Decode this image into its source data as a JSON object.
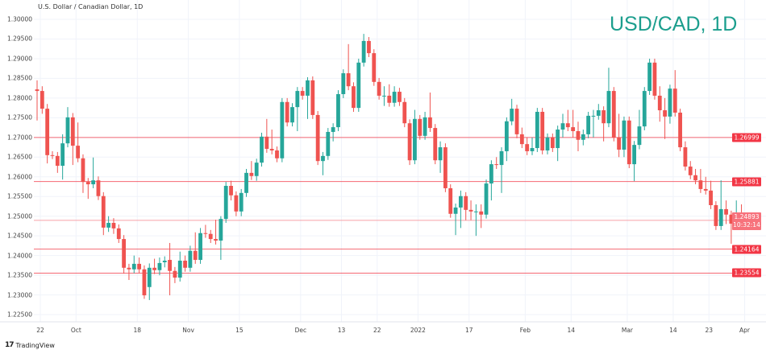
{
  "header": {
    "symbol_description": "U.S. Dollar / Canadian Dollar, 1D",
    "watermark_title": "USD/CAD, 1D"
  },
  "branding": {
    "logo_text": "TradingView"
  },
  "colors": {
    "up": "#26a69a",
    "down": "#ef5350",
    "level_line": "#f23645",
    "title": "#1b9e8d"
  },
  "chart_data": {
    "type": "candlestick",
    "title": "U.S. Dollar / Canadian Dollar, 1D",
    "ylim": [
      1.221,
      1.3015
    ],
    "grid": true,
    "y_axis_position": "left",
    "y_ticks": [
      "1.30000",
      "1.29500",
      "1.29000",
      "1.28500",
      "1.28000",
      "1.27500",
      "1.27000",
      "1.26500",
      "1.26000",
      "1.25500",
      "1.25000",
      "1.24500",
      "1.24000",
      "1.23500",
      "1.23000",
      "1.22500"
    ],
    "x_ticks": [
      {
        "label": "22",
        "index": 0
      },
      {
        "label": "Oct",
        "index": 7
      },
      {
        "label": "18",
        "index": 19
      },
      {
        "label": "Nov",
        "index": 29
      },
      {
        "label": "15",
        "index": 39
      },
      {
        "label": "Dec",
        "index": 51
      },
      {
        "label": "13",
        "index": 59
      },
      {
        "label": "22",
        "index": 66
      },
      {
        "label": "2022",
        "index": 74
      },
      {
        "label": "17",
        "index": 84
      },
      {
        "label": "Feb",
        "index": 95
      },
      {
        "label": "14",
        "index": 104
      },
      {
        "label": "Mar",
        "index": 115
      },
      {
        "label": "14",
        "index": 124
      },
      {
        "label": "23",
        "index": 131
      },
      {
        "label": "Apr",
        "index": 138
      }
    ],
    "horizontal_levels": [
      "1.26999",
      "1.25881",
      "1.24164",
      "1.23554"
    ],
    "current_price": {
      "value": "1.24893",
      "countdown": "10:32:14"
    },
    "ohlc_fields": [
      "open",
      "high",
      "low",
      "close"
    ],
    "candles": [
      [
        1.2822,
        1.2845,
        1.2743,
        1.2818
      ],
      [
        1.2818,
        1.283,
        1.276,
        1.2773
      ],
      [
        1.2773,
        1.2785,
        1.2634,
        1.2655
      ],
      [
        1.2655,
        1.2665,
        1.2645,
        1.2653
      ],
      [
        1.2653,
        1.2663,
        1.261,
        1.2628
      ],
      [
        1.2628,
        1.2708,
        1.2593,
        1.2685
      ],
      [
        1.2685,
        1.2777,
        1.2675,
        1.2751
      ],
      [
        1.2751,
        1.2762,
        1.263,
        1.2679
      ],
      [
        1.2679,
        1.2738,
        1.2637,
        1.2647
      ],
      [
        1.2647,
        1.2657,
        1.2559,
        1.2587
      ],
      [
        1.2587,
        1.2597,
        1.2544,
        1.2581
      ],
      [
        1.2581,
        1.2649,
        1.2571,
        1.2591
      ],
      [
        1.2591,
        1.2601,
        1.2541,
        1.2551
      ],
      [
        1.2551,
        1.2561,
        1.2452,
        1.2471
      ],
      [
        1.2471,
        1.25,
        1.246,
        1.2483
      ],
      [
        1.2483,
        1.2495,
        1.2455,
        1.2469
      ],
      [
        1.2469,
        1.2479,
        1.2432,
        1.2442
      ],
      [
        1.2442,
        1.2452,
        1.2354,
        1.2369
      ],
      [
        1.2369,
        1.2379,
        1.2338,
        1.2365
      ],
      [
        1.2365,
        1.24,
        1.2355,
        1.2379
      ],
      [
        1.2379,
        1.2395,
        1.2355,
        1.2365
      ],
      [
        1.2365,
        1.2375,
        1.229,
        1.2299
      ],
      [
        1.232,
        1.238,
        1.2287,
        1.2369
      ],
      [
        1.2369,
        1.2392,
        1.2353,
        1.2363
      ],
      [
        1.2363,
        1.2395,
        1.235,
        1.2381
      ],
      [
        1.2383,
        1.2398,
        1.237,
        1.2387
      ],
      [
        1.2389,
        1.2432,
        1.2299,
        1.2361
      ],
      [
        1.2361,
        1.2371,
        1.233,
        1.2344
      ],
      [
        1.2344,
        1.241,
        1.2334,
        1.2387
      ],
      [
        1.2387,
        1.24,
        1.2359,
        1.2369
      ],
      [
        1.2369,
        1.2425,
        1.2359,
        1.2412
      ],
      [
        1.2412,
        1.2459,
        1.2379,
        1.2389
      ],
      [
        1.2389,
        1.247,
        1.2379,
        1.2457
      ],
      [
        1.2457,
        1.2478,
        1.2445,
        1.2455
      ],
      [
        1.2455,
        1.2465,
        1.2432,
        1.2442
      ],
      [
        1.2442,
        1.2491,
        1.2428,
        1.2438
      ],
      [
        1.2438,
        1.25,
        1.2389,
        1.2493
      ],
      [
        1.2493,
        1.2587,
        1.2483,
        1.2577
      ],
      [
        1.2577,
        1.259,
        1.254,
        1.2553
      ],
      [
        1.2553,
        1.2563,
        1.25,
        1.2512
      ],
      [
        1.2512,
        1.2569,
        1.25,
        1.2559
      ],
      [
        1.2559,
        1.262,
        1.2549,
        1.261
      ],
      [
        1.261,
        1.264,
        1.2592,
        1.2602
      ],
      [
        1.2602,
        1.2646,
        1.259,
        1.2636
      ],
      [
        1.2636,
        1.2712,
        1.2626,
        1.2702
      ],
      [
        1.2702,
        1.2747,
        1.2661,
        1.2671
      ],
      [
        1.2671,
        1.272,
        1.2657,
        1.2667
      ],
      [
        1.2667,
        1.2677,
        1.2637,
        1.2647
      ],
      [
        1.2647,
        1.28,
        1.2637,
        1.279
      ],
      [
        1.279,
        1.28,
        1.2728,
        1.2738
      ],
      [
        1.2738,
        1.2787,
        1.2728,
        1.2777
      ],
      [
        1.2777,
        1.2828,
        1.2716,
        1.2818
      ],
      [
        1.2818,
        1.2828,
        1.2796,
        1.2806
      ],
      [
        1.2806,
        1.2853,
        1.2747,
        1.2845
      ],
      [
        1.2845,
        1.2855,
        1.2747,
        1.2757
      ],
      [
        1.2757,
        1.2767,
        1.263,
        1.264
      ],
      [
        1.264,
        1.2663,
        1.2604,
        1.2653
      ],
      [
        1.2653,
        1.2724,
        1.2643,
        1.2714
      ],
      [
        1.2714,
        1.2736,
        1.269,
        1.2726
      ],
      [
        1.2726,
        1.282,
        1.2716,
        1.281
      ],
      [
        1.281,
        1.2873,
        1.28,
        1.2863
      ],
      [
        1.2863,
        1.2937,
        1.282,
        1.283
      ],
      [
        1.283,
        1.284,
        1.2765,
        1.2775
      ],
      [
        1.2775,
        1.29,
        1.2765,
        1.289
      ],
      [
        1.289,
        1.2963,
        1.288,
        1.2945
      ],
      [
        1.2945,
        1.2955,
        1.2904,
        1.2914
      ],
      [
        1.2914,
        1.2924,
        1.2831,
        1.2841
      ],
      [
        1.2841,
        1.2851,
        1.2796,
        1.2806
      ],
      [
        1.2806,
        1.283,
        1.278,
        1.2806
      ],
      [
        1.2806,
        1.2835,
        1.2778,
        1.2788
      ],
      [
        1.2788,
        1.283,
        1.2778,
        1.2816
      ],
      [
        1.2816,
        1.2826,
        1.278,
        1.279
      ],
      [
        1.279,
        1.28,
        1.2726,
        1.2736
      ],
      [
        1.2736,
        1.2746,
        1.263,
        1.2642
      ],
      [
        1.2642,
        1.277,
        1.2632,
        1.2747
      ],
      [
        1.2747,
        1.2757,
        1.2694,
        1.2704
      ],
      [
        1.2704,
        1.2765,
        1.2694,
        1.2751
      ],
      [
        1.2751,
        1.2814,
        1.2714,
        1.2724
      ],
      [
        1.2724,
        1.2734,
        1.2632,
        1.2642
      ],
      [
        1.2642,
        1.269,
        1.261,
        1.2675
      ],
      [
        1.2675,
        1.2685,
        1.2561,
        1.2571
      ],
      [
        1.2571,
        1.2581,
        1.2496,
        1.2506
      ],
      [
        1.2506,
        1.2532,
        1.2452,
        1.2522
      ],
      [
        1.2522,
        1.2565,
        1.247,
        1.2551
      ],
      [
        1.2551,
        1.2561,
        1.249,
        1.2516
      ],
      [
        1.2516,
        1.254,
        1.249,
        1.2512
      ],
      [
        1.2512,
        1.253,
        1.245,
        1.2512
      ],
      [
        1.2512,
        1.253,
        1.247,
        1.2504
      ],
      [
        1.2504,
        1.2593,
        1.2494,
        1.2583
      ],
      [
        1.2583,
        1.2642,
        1.254,
        1.2632
      ],
      [
        1.2632,
        1.265,
        1.262,
        1.263
      ],
      [
        1.263,
        1.2675,
        1.2559,
        1.2665
      ],
      [
        1.2665,
        1.2751,
        1.264,
        1.2741
      ],
      [
        1.2741,
        1.2798,
        1.2731,
        1.2773
      ],
      [
        1.2773,
        1.2783,
        1.2698,
        1.2708
      ],
      [
        1.2708,
        1.2725,
        1.2673,
        1.2683
      ],
      [
        1.2683,
        1.27,
        1.2655,
        1.2665
      ],
      [
        1.2665,
        1.27,
        1.2655,
        1.2673
      ],
      [
        1.2673,
        1.2775,
        1.2663,
        1.2765
      ],
      [
        1.2765,
        1.2775,
        1.2657,
        1.2667
      ],
      [
        1.2667,
        1.271,
        1.2657,
        1.27
      ],
      [
        1.27,
        1.271,
        1.2663,
        1.2673
      ],
      [
        1.2673,
        1.273,
        1.264,
        1.272
      ],
      [
        1.272,
        1.276,
        1.27,
        1.2736
      ],
      [
        1.2736,
        1.277,
        1.2716,
        1.2726
      ],
      [
        1.2726,
        1.277,
        1.27,
        1.2716
      ],
      [
        1.2716,
        1.274,
        1.2665,
        1.2694
      ],
      [
        1.2694,
        1.272,
        1.268,
        1.2708
      ],
      [
        1.2708,
        1.2765,
        1.2698,
        1.2755
      ],
      [
        1.2755,
        1.277,
        1.27,
        1.2755
      ],
      [
        1.2755,
        1.2785,
        1.2745,
        1.2769
      ],
      [
        1.2769,
        1.2779,
        1.269,
        1.2736
      ],
      [
        1.2736,
        1.2877,
        1.2726,
        1.2818
      ],
      [
        1.2818,
        1.2828,
        1.269,
        1.27
      ],
      [
        1.27,
        1.276,
        1.265,
        1.2669
      ],
      [
        1.2669,
        1.2753,
        1.265,
        1.2743
      ],
      [
        1.2743,
        1.2753,
        1.2622,
        1.2632
      ],
      [
        1.2632,
        1.2691,
        1.2589,
        1.2681
      ],
      [
        1.2681,
        1.277,
        1.267,
        1.2728
      ],
      [
        1.2728,
        1.2828,
        1.2718,
        1.2818
      ],
      [
        1.2818,
        1.29,
        1.2808,
        1.289
      ],
      [
        1.289,
        1.29,
        1.2796,
        1.2806
      ],
      [
        1.2806,
        1.283,
        1.274,
        1.2769
      ],
      [
        1.2769,
        1.28,
        1.2696,
        1.2753
      ],
      [
        1.2753,
        1.2834,
        1.2735,
        1.2824
      ],
      [
        1.2824,
        1.2871,
        1.2753,
        1.2763
      ],
      [
        1.2763,
        1.2773,
        1.2665,
        1.2675
      ],
      [
        1.2675,
        1.269,
        1.2616,
        1.2626
      ],
      [
        1.2626,
        1.264,
        1.2594,
        1.2604
      ],
      [
        1.2604,
        1.262,
        1.2581,
        1.2591
      ],
      [
        1.2591,
        1.262,
        1.2559,
        1.2569
      ],
      [
        1.2569,
        1.26,
        1.2555,
        1.2565
      ],
      [
        1.2565,
        1.259,
        1.2518,
        1.2528
      ],
      [
        1.2528,
        1.2538,
        1.2465,
        1.2475
      ],
      [
        1.2475,
        1.2591,
        1.2465,
        1.2518
      ],
      [
        1.2518,
        1.254,
        1.248,
        1.2504
      ],
      [
        1.2504,
        1.2514,
        1.243,
        1.2481
      ],
      [
        1.2481,
        1.254,
        1.2471,
        1.2506
      ],
      [
        1.2506,
        1.253,
        1.2479,
        1.2489
      ]
    ]
  }
}
